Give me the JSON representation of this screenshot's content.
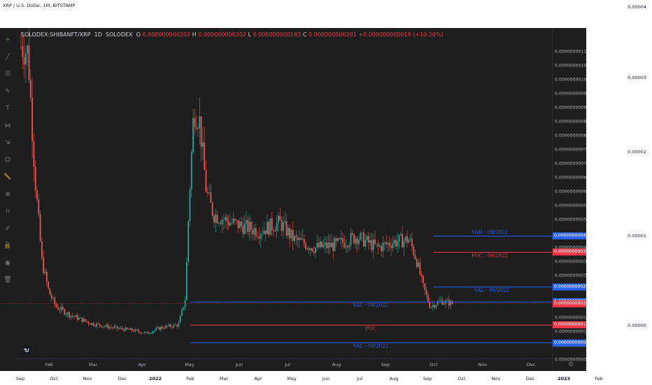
{
  "window": {
    "title": "XRP / U.S. Dollar, 1M, BITSTAMP"
  },
  "outer_price_axis": [
    "0.00004",
    "0.00003",
    "0.00002",
    "0.00001",
    "0.00000"
  ],
  "outer_time_axis": [
    "Sep",
    "Oct",
    "Nov",
    "Dec",
    "2022",
    "Feb",
    "Mar",
    "Apr",
    "May",
    "Jun",
    "Jul",
    "Aug",
    "Sep",
    "Oct",
    "Nov",
    "Dec",
    "2023",
    "Feb"
  ],
  "legend": {
    "symbol": "SOLODEX:SHIBANFT/XRP",
    "interval": "1D",
    "exchange": "SOLODEX",
    "o_label": "O",
    "o_value": "0.000000000202",
    "h_label": "H",
    "h_value": "0.000000000202",
    "l_label": "L",
    "l_value": "0.000000000183",
    "c_label": "C",
    "c_value": "0.000000000201",
    "change": "+0.000000000019 (+10.20%)"
  },
  "price_axis": [
    "0.000000001100",
    "0.000000001050",
    "0.000000001000",
    "0.000000000950",
    "0.000000000900",
    "0.000000000850",
    "0.000000000800",
    "0.000000000750",
    "0.000000000700",
    "0.000000000650",
    "0.000000000600",
    "0.000000000550",
    "0.000000000500",
    "0.000000000400",
    "0.000000000350",
    "0.000000000300",
    "0.000000000150",
    "0.000000000100",
    "0.000000000050",
    "0.000000000000"
  ],
  "price_badges": [
    {
      "value": "0.000000000442",
      "color": "#2962ff"
    },
    {
      "value": "0.000000000384",
      "color": "#f23645"
    },
    {
      "value": "0.000000000260",
      "color": "#2962ff"
    },
    {
      "value": "0.000000000207",
      "color": "#2962ff"
    },
    {
      "value": "0.000000000201",
      "color": "#f23645"
    },
    {
      "value": "0.000000000124",
      "color": "#f23645"
    },
    {
      "value": "0.000000000061",
      "color": "#2962ff"
    }
  ],
  "time_axis": [
    "Feb",
    "Mar",
    "Apr",
    "May",
    "Jun",
    "Jul",
    "Aug",
    "Sep",
    "Oct",
    "Nov",
    "Dec"
  ],
  "level_labels": [
    {
      "text": "VAH - 09/2022",
      "color": "#2962ff"
    },
    {
      "text": "POC - 09/2022",
      "color": "#f23645"
    },
    {
      "text": "VAL - 09/2022",
      "color": "#2962ff"
    },
    {
      "text": "VAL - 04/2022",
      "color": "#2962ff"
    },
    {
      "text": "POC",
      "color": "#f23645"
    },
    {
      "text": "VAL - 04/2022",
      "color": "#2962ff"
    }
  ],
  "colors": {
    "up": "#26a69a",
    "down": "#ef5350",
    "background": "#1e1e1e"
  },
  "toolbar_icons": [
    "cross-icon",
    "trend-line-icon",
    "horizontal-lines-icon",
    "brush-icon",
    "text-icon",
    "pattern-icon",
    "measure-icon",
    "emoji-icon",
    "ruler-icon",
    "zoom-icon",
    "magnet-icon",
    "lock-drawing-icon",
    "lock-icon",
    "eye-icon",
    "trash-icon"
  ]
}
